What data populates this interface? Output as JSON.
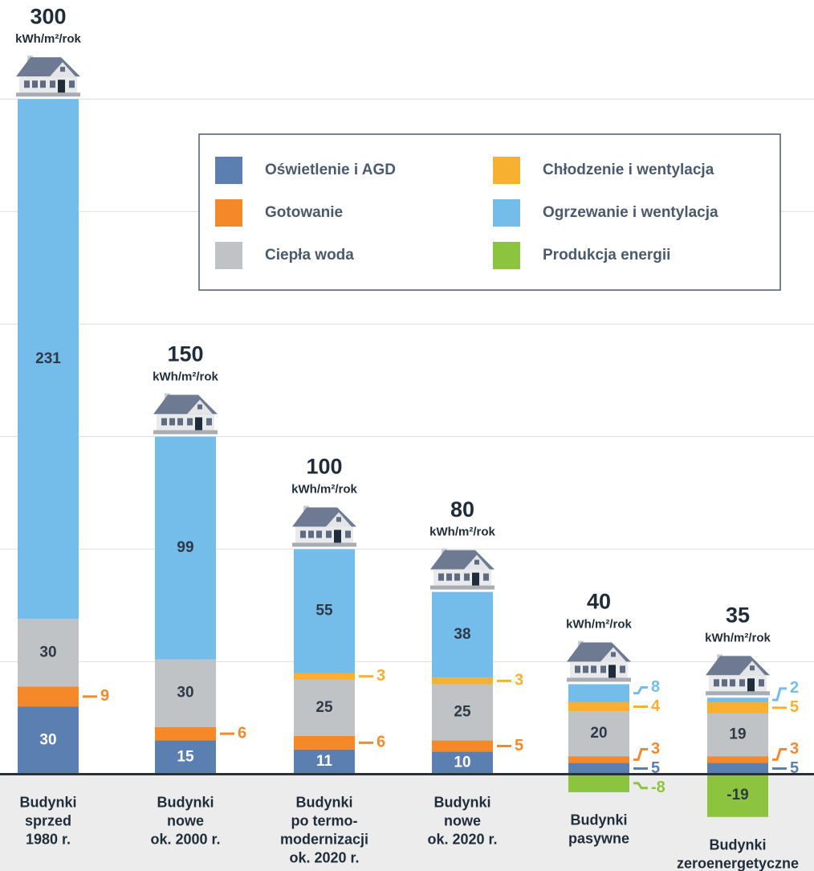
{
  "chart_data": {
    "type": "stacked-bar",
    "categories": [
      [
        "Budynki",
        "sprzed",
        "1980 r."
      ],
      [
        "Budynki",
        "nowe",
        "ok. 2000 r."
      ],
      [
        "Budynki",
        "po termo-",
        "modernizacji",
        "ok. 2020 r."
      ],
      [
        "Budynki",
        "nowe",
        "ok. 2020 r."
      ],
      [
        "Budynki",
        "pasywne"
      ],
      [
        "Budynki",
        "zeroenergetyczne"
      ]
    ],
    "series": [
      {
        "name": "Oświetlenie i AGD",
        "color": "#5b7fb0",
        "values": [
          30,
          15,
          11,
          10,
          5,
          5
        ]
      },
      {
        "name": "Gotowanie",
        "color": "#f5892a",
        "values": [
          9,
          6,
          6,
          5,
          3,
          3
        ]
      },
      {
        "name": "Ciepła woda",
        "color": "#bfc3c6",
        "values": [
          30,
          30,
          25,
          25,
          20,
          19
        ]
      },
      {
        "name": "Chłodzenie i wentylacja",
        "color": "#f7b030",
        "values": [
          null,
          null,
          3,
          3,
          4,
          5
        ]
      },
      {
        "name": "Ogrzewanie i wentylacja",
        "color": "#74bce9",
        "values": [
          231,
          99,
          55,
          38,
          8,
          2
        ]
      },
      {
        "name": "Produkcja energii",
        "color": "#8cc43f",
        "values": [
          null,
          null,
          null,
          null,
          -8,
          -19
        ]
      }
    ],
    "totals": [
      300,
      150,
      100,
      80,
      40,
      35
    ],
    "total_unit": "kWh/m²/rok",
    "ylim": [
      -43,
      344
    ],
    "yticks": [
      0,
      50,
      100,
      150,
      200,
      250,
      300
    ],
    "grid": true
  }
}
